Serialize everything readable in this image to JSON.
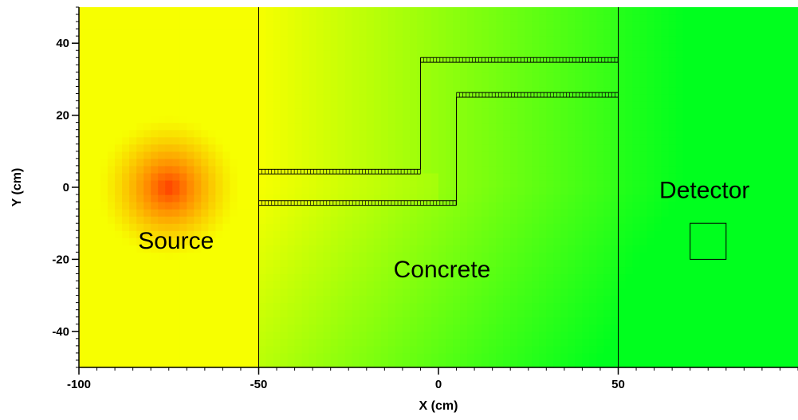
{
  "chart_data": {
    "type": "heatmap",
    "xlabel": "X (cm)",
    "ylabel": "Y (cm)",
    "xlim": [
      -100,
      100
    ],
    "ylim": [
      -50,
      50
    ],
    "x_ticks": [
      -100,
      -50,
      0,
      50
    ],
    "x_tick_labels": [
      "-100",
      "-50",
      "0",
      "50"
    ],
    "y_ticks": [
      -40,
      -20,
      0,
      20,
      40
    ],
    "y_tick_labels": [
      "-40",
      "-20",
      "0",
      "20",
      "40"
    ],
    "colormap": [
      "#f7ff00",
      "#ff8c00",
      "#ff3c00",
      "#00ff1e"
    ],
    "source_center": [
      -75,
      0
    ],
    "annotations": [
      {
        "text": "Source",
        "x": -73,
        "y": -17
      },
      {
        "text": "Concrete",
        "x": 1,
        "y": -25
      },
      {
        "text": "Detector",
        "x": 74,
        "y": -3
      }
    ],
    "regions": {
      "concrete_x": [
        -50,
        50
      ],
      "detector_box": {
        "x": [
          70,
          80
        ],
        "y": [
          -20,
          -10
        ]
      },
      "duct_outline": [
        [
          [
            -50,
            5
          ],
          [
            -5,
            5
          ],
          [
            -5,
            36
          ],
          [
            50,
            36
          ]
        ],
        [
          [
            -50,
            -5
          ],
          [
            5,
            -5
          ],
          [
            5,
            25
          ],
          [
            50,
            25
          ]
        ]
      ]
    }
  }
}
